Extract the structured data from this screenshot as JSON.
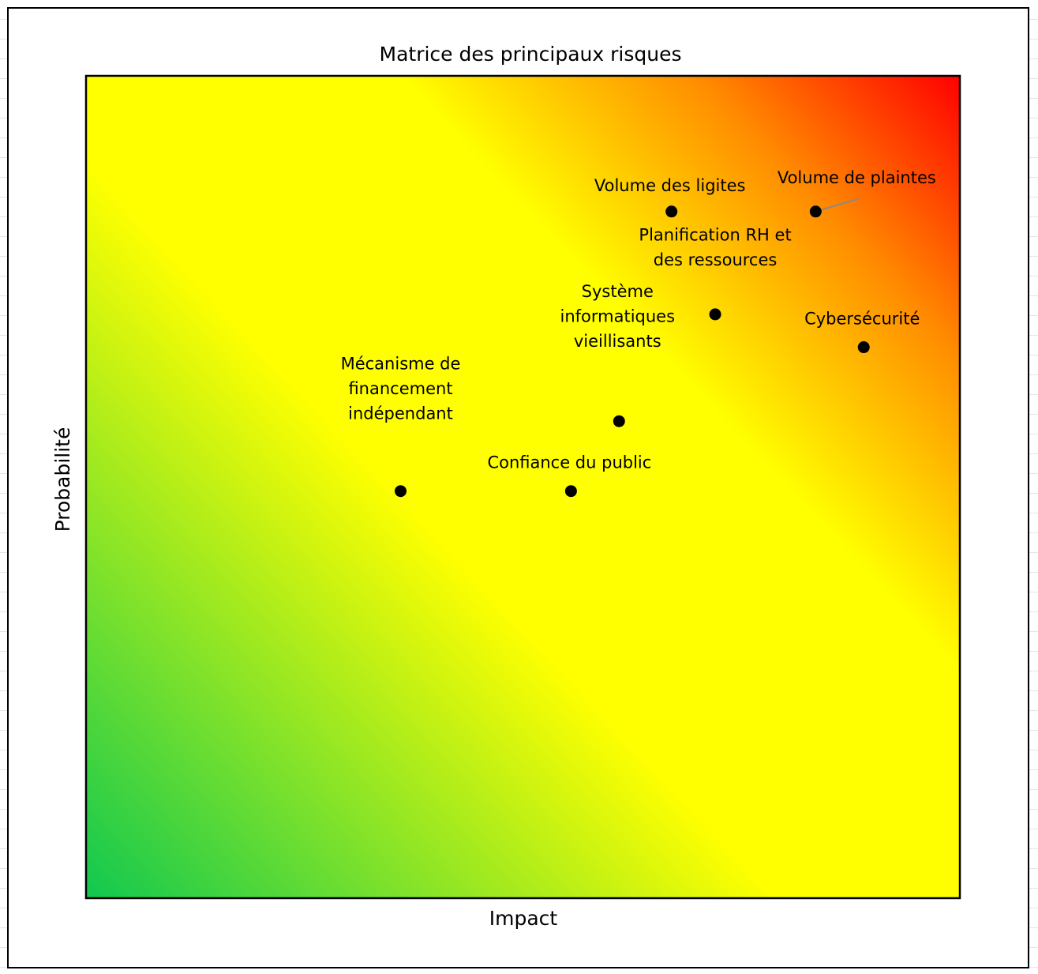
{
  "chart_data": {
    "type": "scatter",
    "title": "Matrice des principaux risques",
    "xlabel": "Impact",
    "ylabel": "Probabilité",
    "xlim": [
      0,
      10
    ],
    "ylim": [
      0,
      10
    ],
    "grid": false,
    "legend": "none",
    "background": "diagonal gradient green (bottom-left) to yellow to red (top-right)",
    "colors": {
      "green": "#10c850",
      "yellow": "#ffff00",
      "orange": "#ff8c00",
      "red": "#ff0000",
      "point": "#000000"
    },
    "points": [
      {
        "label": [
          "Volume des ligites"
        ],
        "x": 6.7,
        "y": 8.35
      },
      {
        "label": [
          "Volume de plaintes"
        ],
        "x": 8.35,
        "y": 8.35
      },
      {
        "label": [
          "Planification RH et",
          "des ressources"
        ],
        "x": 7.2,
        "y": 7.1
      },
      {
        "label": [
          "Cybersécurité"
        ],
        "x": 8.9,
        "y": 6.7
      },
      {
        "label": [
          "Système",
          "informatiques",
          "vieillisants"
        ],
        "x": 6.1,
        "y": 5.8
      },
      {
        "label": [
          "Mécanisme de",
          "financement",
          "indépendant"
        ],
        "x": 3.6,
        "y": 4.95
      },
      {
        "label": [
          "Confiance du public"
        ],
        "x": 5.55,
        "y": 4.95
      }
    ]
  }
}
